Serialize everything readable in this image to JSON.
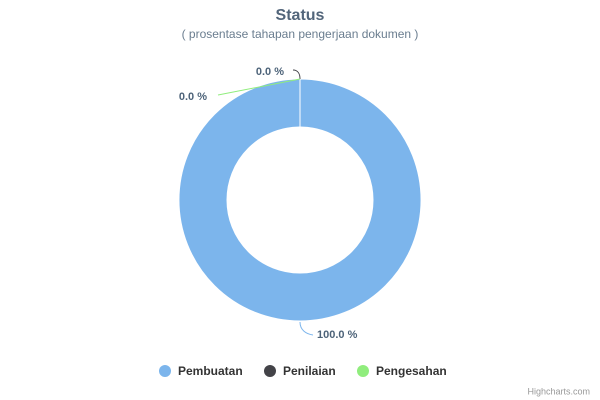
{
  "chart_data": {
    "type": "pie",
    "title": "Status",
    "subtitle": "( prosentase tahapan pengerjaan dokumen )",
    "categories": [
      "Pembuatan",
      "Penilaian",
      "Pengesahan"
    ],
    "values": [
      100,
      0,
      0
    ],
    "value_labels": [
      "100.0 %",
      "0.0 %",
      "0.0 %"
    ],
    "colors": [
      "#7cb5ec",
      "#434348",
      "#90ed7d"
    ],
    "credits": "Highcharts.com"
  }
}
